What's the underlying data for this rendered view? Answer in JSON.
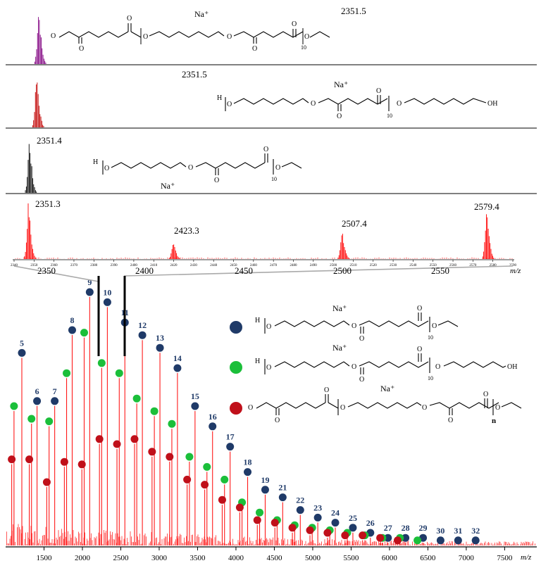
{
  "chart_data": [
    {
      "type": "line",
      "title": "",
      "xlabel": "",
      "ylabel": "",
      "peak_label": "2351.5",
      "ion_label": "Na⁺",
      "repeat_subscript": "10",
      "color": "#800080",
      "xlim": [
        2340,
        2590
      ],
      "peaks": [
        {
          "x": 2351.5,
          "rel": 1.0
        }
      ]
    },
    {
      "type": "line",
      "title": "",
      "xlabel": "",
      "ylabel": "",
      "peak_label": "2351.5",
      "ion_label": "Na⁺",
      "repeat_subscript": "10",
      "color": "#c00000",
      "xlim": [
        2340,
        2590
      ],
      "peaks": [
        {
          "x": 2351.5,
          "rel": 1.0
        }
      ]
    },
    {
      "type": "line",
      "title": "",
      "xlabel": "",
      "ylabel": "",
      "peak_label": "2351.4",
      "ion_label": "Na⁺",
      "repeat_subscript": "10",
      "color": "#000000",
      "xlim": [
        2340,
        2590
      ],
      "peaks": [
        {
          "x": 2351.4,
          "rel": 1.0
        }
      ]
    },
    {
      "type": "line",
      "title": "",
      "color": "#ff0000",
      "xlabel": "m/z",
      "xlim": [
        2340,
        2590
      ],
      "xticks_major": [
        2350,
        2400,
        2450,
        2500,
        2550
      ],
      "xticks_minor": [
        2340,
        2350,
        2360,
        2370,
        2380,
        2390,
        2400,
        2410,
        2420,
        2430,
        2440,
        2450,
        2460,
        2470,
        2480,
        2490,
        2500,
        2510,
        2520,
        2530,
        2540,
        2550,
        2560,
        2570,
        2580,
        2590
      ],
      "peaks": [
        {
          "x": 2351.3,
          "label": "2351.3",
          "rel": 1.0
        },
        {
          "x": 2423.3,
          "label": "2423.3",
          "rel": 0.33
        },
        {
          "x": 2507.4,
          "label": "2507.4",
          "rel": 0.52
        },
        {
          "x": 2579.4,
          "label": "2579.4",
          "rel": 0.96
        }
      ]
    },
    {
      "type": "scatter",
      "title": "",
      "xlabel": "m/z",
      "ylabel": "",
      "xlim": [
        1000,
        7900
      ],
      "xticks": [
        1500,
        2000,
        2500,
        3000,
        3500,
        4000,
        4500,
        5000,
        5500,
        6000,
        6500,
        7000,
        7500
      ],
      "ion_label": "Na⁺",
      "repeat_subscript": "10",
      "repeat_n": "n",
      "legend": [
        {
          "color": "#1f3a68"
        },
        {
          "color": "#1bbf3a"
        },
        {
          "color": "#c0101a"
        }
      ],
      "series": [
        {
          "color": "#1f3a68",
          "points": [
            {
              "x": 1211,
              "y": 0.76,
              "label": "5"
            },
            {
              "x": 1409,
              "y": 0.57,
              "label": "6"
            },
            {
              "x": 1639,
              "y": 0.57,
              "label": "7"
            },
            {
              "x": 1867,
              "y": 0.85,
              "label": "8"
            },
            {
              "x": 2095,
              "y": 1.0,
              "label": "9"
            },
            {
              "x": 2325,
              "y": 0.96,
              "label": "10"
            },
            {
              "x": 2553,
              "y": 0.88,
              "label": "11"
            },
            {
              "x": 2781,
              "y": 0.83,
              "label": "12"
            },
            {
              "x": 3010,
              "y": 0.78,
              "label": "13"
            },
            {
              "x": 3238,
              "y": 0.7,
              "label": "14"
            },
            {
              "x": 3467,
              "y": 0.55,
              "label": "15"
            },
            {
              "x": 3695,
              "y": 0.47,
              "label": "16"
            },
            {
              "x": 3924,
              "y": 0.39,
              "label": "17"
            },
            {
              "x": 4152,
              "y": 0.29,
              "label": "18"
            },
            {
              "x": 4381,
              "y": 0.22,
              "label": "19"
            },
            {
              "x": 4609,
              "y": 0.19,
              "label": "21"
            },
            {
              "x": 4838,
              "y": 0.14,
              "label": "22"
            },
            {
              "x": 5066,
              "y": 0.11,
              "label": "23"
            },
            {
              "x": 5294,
              "y": 0.09,
              "label": "24"
            },
            {
              "x": 5523,
              "y": 0.07,
              "label": "25"
            },
            {
              "x": 5751,
              "y": 0.05,
              "label": "26"
            },
            {
              "x": 5980,
              "y": 0.03,
              "label": "27"
            },
            {
              "x": 6208,
              "y": 0.03,
              "label": "28"
            },
            {
              "x": 6437,
              "y": 0.03,
              "label": "29"
            },
            {
              "x": 6665,
              "y": 0.02,
              "label": "30"
            },
            {
              "x": 6894,
              "y": 0.02,
              "label": "31"
            },
            {
              "x": 7122,
              "y": 0.02,
              "label": "32"
            }
          ]
        },
        {
          "color": "#1bbf3a",
          "points": [
            {
              "x": 1109,
              "y": 0.55
            },
            {
              "x": 1337,
              "y": 0.5
            },
            {
              "x": 1566,
              "y": 0.49
            },
            {
              "x": 1794,
              "y": 0.68
            },
            {
              "x": 2023,
              "y": 0.84
            },
            {
              "x": 2251,
              "y": 0.72
            },
            {
              "x": 2480,
              "y": 0.68
            },
            {
              "x": 2708,
              "y": 0.58
            },
            {
              "x": 2937,
              "y": 0.53
            },
            {
              "x": 3165,
              "y": 0.48
            },
            {
              "x": 3394,
              "y": 0.35
            },
            {
              "x": 3622,
              "y": 0.31
            },
            {
              "x": 3851,
              "y": 0.26
            },
            {
              "x": 4079,
              "y": 0.17
            },
            {
              "x": 4308,
              "y": 0.13
            },
            {
              "x": 4536,
              "y": 0.1
            },
            {
              "x": 4765,
              "y": 0.08
            },
            {
              "x": 4993,
              "y": 0.07
            },
            {
              "x": 5222,
              "y": 0.06
            },
            {
              "x": 5450,
              "y": 0.05
            },
            {
              "x": 5679,
              "y": 0.04
            },
            {
              "x": 5907,
              "y": 0.03
            },
            {
              "x": 6136,
              "y": 0.03
            },
            {
              "x": 6364,
              "y": 0.02
            }
          ]
        },
        {
          "color": "#c0101a",
          "points": [
            {
              "x": 1079,
              "y": 0.34
            },
            {
              "x": 1308,
              "y": 0.34
            },
            {
              "x": 1536,
              "y": 0.25
            },
            {
              "x": 1765,
              "y": 0.33
            },
            {
              "x": 1993,
              "y": 0.32
            },
            {
              "x": 2222,
              "y": 0.42
            },
            {
              "x": 2450,
              "y": 0.4
            },
            {
              "x": 2679,
              "y": 0.42
            },
            {
              "x": 2907,
              "y": 0.37
            },
            {
              "x": 3136,
              "y": 0.35
            },
            {
              "x": 3364,
              "y": 0.26
            },
            {
              "x": 3593,
              "y": 0.24
            },
            {
              "x": 3821,
              "y": 0.18
            },
            {
              "x": 4050,
              "y": 0.15
            },
            {
              "x": 4278,
              "y": 0.1
            },
            {
              "x": 4507,
              "y": 0.09
            },
            {
              "x": 4735,
              "y": 0.07
            },
            {
              "x": 4964,
              "y": 0.06
            },
            {
              "x": 5192,
              "y": 0.05
            },
            {
              "x": 5421,
              "y": 0.04
            },
            {
              "x": 5649,
              "y": 0.04
            },
            {
              "x": 5878,
              "y": 0.03
            },
            {
              "x": 6106,
              "y": 0.02
            }
          ]
        }
      ]
    }
  ]
}
